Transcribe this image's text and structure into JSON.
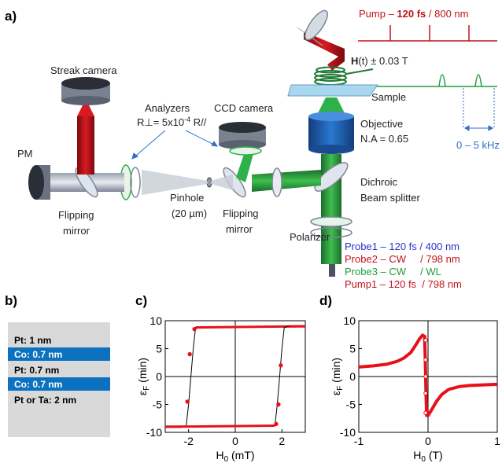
{
  "colors": {
    "pump": "#c0141c",
    "probe1": "#2a32c8",
    "probe2": "#c0141c",
    "probe3": "#1e9e3a",
    "pump1": "#c0141c",
    "accent_blue": "#2f6fc6",
    "co_layer": "#0c72c0",
    "stack_bg": "#d9d9d9",
    "curve_red": "#e8101a"
  },
  "panel_a": {
    "label": "a)",
    "pump_line": {
      "prefix": "Pump – ",
      "bold": "120 fs",
      "suffix": " / 800 nm"
    },
    "field_label": {
      "bold": "H",
      "text": "(t) ± 0.03 T"
    },
    "sample": "Sample",
    "objective": "Objective",
    "na": "N.A = 0.65",
    "freq": "0 – 5 kHz",
    "streak_camera": "Streak camera",
    "analyzers": "Analyzers",
    "analyzer_ratio": "R⊥= 5x10",
    "analyzer_exp": "-4",
    "analyzer_tail": " R//",
    "ccd_camera": "CCD camera",
    "pm": "PM",
    "flipping_mirror_left_1": "Flipping",
    "flipping_mirror_left_2": "mirror",
    "pinhole_1": "Pinhole",
    "pinhole_2": "(20 µm)",
    "flipping_mirror_right_1": "Flipping",
    "flipping_mirror_right_2": "mirror",
    "dichroic_1": "Dichroic",
    "dichroic_2": "Beam splitter",
    "polarizer": "Polarizer",
    "probes": [
      {
        "name": "Probe1 – 120 fs",
        "sep": " / ",
        "wl": "400 nm"
      },
      {
        "name": "Probe2 – CW",
        "sep": "     / ",
        "wl": "798 nm"
      },
      {
        "name": "Probe3 – CW",
        "sep": "     / ",
        "wl": "WL"
      },
      {
        "name": "Pump1 – 120 fs",
        "sep": "  / ",
        "wl": "798 nm"
      }
    ]
  },
  "panel_b": {
    "label": "b)",
    "layers": [
      "Pt: 1 nm",
      "Co: 0.7 nm",
      "Pt: 0.7 nm",
      "Co: 0.7 nm",
      "Pt or Ta: 2 nm"
    ]
  },
  "chart_data": [
    {
      "panel": "c)",
      "type": "line",
      "ylabel_main": "ε",
      "ylabel_sub": "F",
      "ylabel_unit": " (min)",
      "xlabel_main": "H",
      "xlabel_sub": "0",
      "xlabel_unit": " (mT)",
      "xlim": [
        -3,
        3
      ],
      "ylim": [
        -10,
        10
      ],
      "xticks": [
        -2,
        0,
        2
      ],
      "yticks": [
        10,
        5,
        0,
        -5,
        -10
      ],
      "series": [
        {
          "x": [
            -3,
            -2.3,
            -2.1,
            -2.0,
            -1.9,
            -1.8,
            -1.7,
            3
          ],
          "y": [
            -9,
            -9,
            -8.8,
            -5,
            0,
            5,
            8.8,
            9
          ]
        },
        {
          "x": [
            3,
            2.3,
            2.1,
            2.0,
            1.9,
            1.8,
            1.7,
            -3
          ],
          "y": [
            9,
            9,
            8.8,
            5,
            0,
            -5,
            -8.8,
            -9
          ]
        }
      ],
      "points": [
        {
          "x": -2.05,
          "y": -4.5
        },
        {
          "x": -1.95,
          "y": 4.0
        },
        {
          "x": -1.75,
          "y": 8.5
        },
        {
          "x": 1.75,
          "y": -8.5
        },
        {
          "x": 1.85,
          "y": -5.0
        },
        {
          "x": 1.95,
          "y": 2.0
        }
      ]
    },
    {
      "panel": "d)",
      "type": "line",
      "ylabel_main": "ε",
      "ylabel_sub": "F",
      "ylabel_unit": " (min)",
      "xlabel_main": "H",
      "xlabel_sub": "0",
      "xlabel_unit": " (T)",
      "xlim": [
        -1,
        1
      ],
      "ylim": [
        -10,
        10
      ],
      "xticks": [
        -1,
        0,
        1
      ],
      "yticks": [
        10,
        5,
        0,
        -5,
        -10
      ],
      "series": [
        {
          "x": [
            -1,
            -0.8,
            -0.6,
            -0.45,
            -0.35,
            -0.25,
            -0.18,
            -0.12,
            -0.08,
            -0.05,
            -0.04,
            -0.03,
            -0.02
          ],
          "y": [
            1.7,
            1.9,
            2.2,
            2.7,
            3.3,
            4.3,
            5.6,
            6.8,
            7.4,
            7.2,
            3,
            -3,
            -7.2
          ]
        },
        {
          "x": [
            -0.02,
            0.0,
            0.05,
            0.12,
            0.2,
            0.3,
            0.45,
            0.6,
            0.8,
            1
          ],
          "y": [
            -7.2,
            -7.0,
            -6.0,
            -4.5,
            -3.2,
            -2.3,
            -1.8,
            -1.6,
            -1.5,
            -1.4
          ]
        }
      ],
      "points": [
        {
          "x": -0.035,
          "y": 6.5
        },
        {
          "x": -0.035,
          "y": 3.0
        },
        {
          "x": -0.035,
          "y": 0.0
        },
        {
          "x": -0.035,
          "y": -3.0
        },
        {
          "x": -0.035,
          "y": -6.5
        }
      ]
    }
  ]
}
